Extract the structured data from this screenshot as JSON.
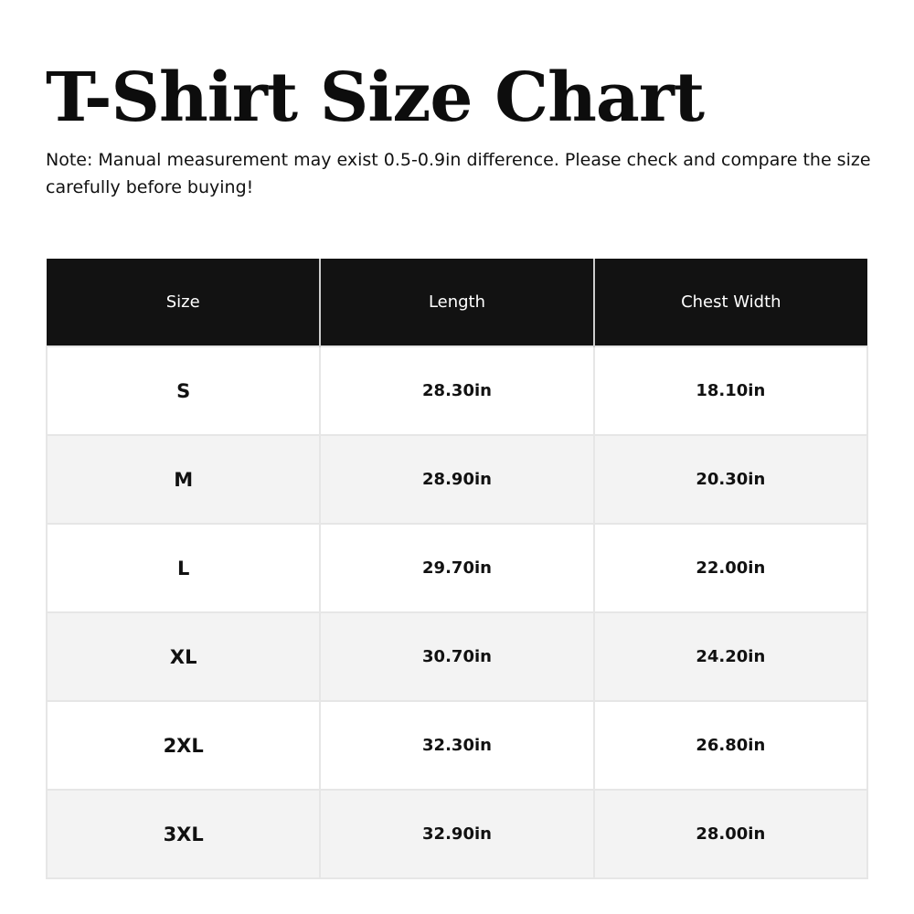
{
  "title": "T-Shirt Size Chart",
  "note": "Note: Manual measurement may exist 0.5-0.9in difference. Please check and compare the size carefully before buying!",
  "table": {
    "headers": [
      "Size",
      "Length",
      "Chest Width"
    ],
    "rows": [
      [
        "S",
        "28.30in",
        "18.10in"
      ],
      [
        "M",
        "28.90in",
        "20.30in"
      ],
      [
        "L",
        "29.70in",
        "22.00in"
      ],
      [
        "XL",
        "30.70in",
        "24.20in"
      ],
      [
        "2XL",
        "32.30in",
        "26.80in"
      ],
      [
        "3XL",
        "32.90in",
        "28.00in"
      ]
    ]
  }
}
